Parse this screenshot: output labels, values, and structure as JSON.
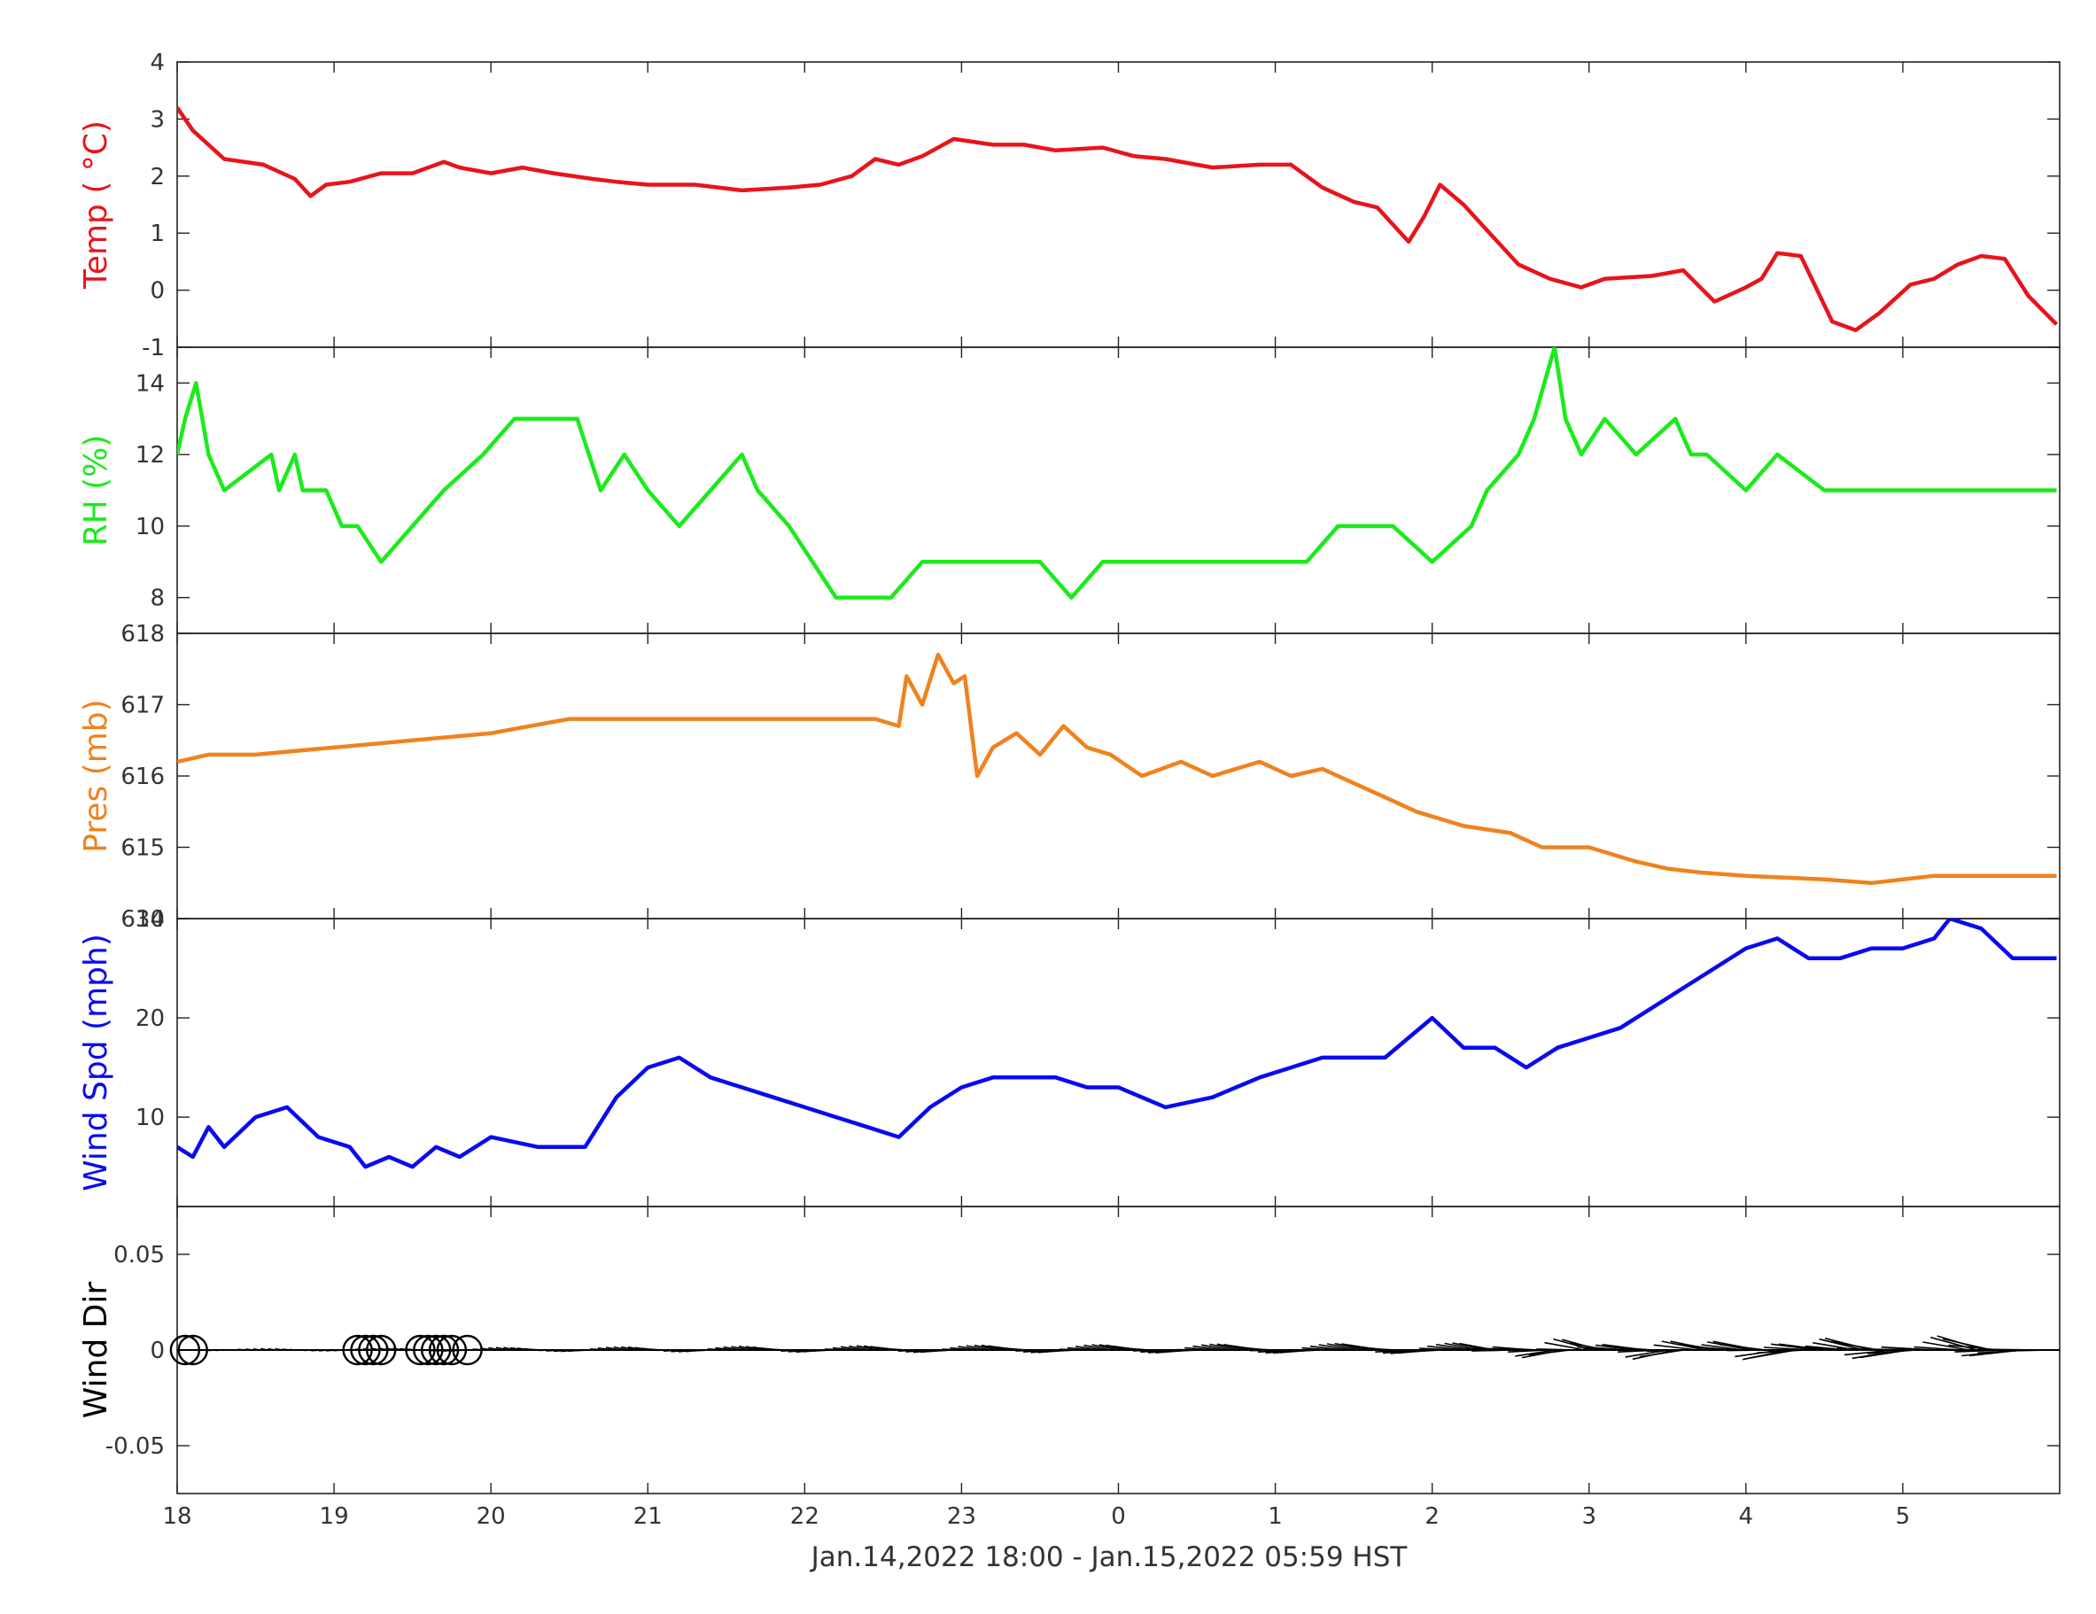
{
  "chart_data": [
    {
      "type": "line",
      "ylabel": "Temp ( °C)",
      "ylabel_color": "#e8141b",
      "series_color": "#e8141b",
      "ylim": [
        -1,
        4
      ],
      "yticks": [
        -1,
        0,
        1,
        2,
        3,
        4
      ],
      "ytick_labels": [
        "-1",
        "0",
        "1",
        "2",
        "3",
        "4"
      ],
      "series": [
        {
          "name": "",
          "x": [
            18.0,
            18.1,
            18.3,
            18.55,
            18.75,
            18.85,
            18.95,
            19.1,
            19.3,
            19.5,
            19.7,
            19.8,
            20.0,
            20.2,
            20.4,
            20.65,
            20.8,
            21.0,
            21.3,
            21.6,
            21.9,
            22.1,
            22.3,
            22.45,
            22.6,
            22.75,
            22.95,
            23.2,
            23.4,
            23.6,
            23.9,
            0.1,
            0.3,
            0.6,
            0.9,
            1.1,
            1.3,
            1.5,
            1.65,
            1.85,
            1.95,
            2.05,
            2.2,
            2.35,
            2.55,
            2.75,
            2.95,
            3.1,
            3.4,
            3.6,
            3.8,
            4.0,
            4.1,
            4.2,
            4.35,
            4.55,
            4.7,
            4.85,
            5.05,
            5.2,
            5.35,
            5.5,
            5.65,
            5.8,
            5.98
          ],
          "values": [
            3.2,
            2.8,
            2.3,
            2.2,
            1.95,
            1.65,
            1.85,
            1.9,
            2.05,
            2.05,
            2.25,
            2.15,
            2.05,
            2.15,
            2.05,
            1.95,
            1.9,
            1.85,
            1.85,
            1.75,
            1.8,
            1.85,
            2.0,
            2.3,
            2.2,
            2.35,
            2.65,
            2.55,
            2.55,
            2.45,
            2.5,
            2.35,
            2.3,
            2.15,
            2.2,
            2.2,
            1.8,
            1.55,
            1.45,
            0.85,
            1.3,
            1.85,
            1.5,
            1.05,
            0.45,
            0.2,
            0.05,
            0.2,
            0.25,
            0.35,
            -0.2,
            0.05,
            0.2,
            0.65,
            0.6,
            -0.55,
            -0.7,
            -0.4,
            0.1,
            0.2,
            0.45,
            0.6,
            0.55,
            -0.1,
            -0.6
          ]
        }
      ]
    },
    {
      "type": "line",
      "ylabel": "RH (%)",
      "ylabel_color": "#1aeb1a",
      "series_color": "#1aeb1a",
      "ylim": [
        7,
        15
      ],
      "yticks": [
        8,
        10,
        12,
        14
      ],
      "ytick_labels": [
        "8",
        "10",
        "12",
        "14"
      ],
      "series": [
        {
          "name": "",
          "x": [
            18.0,
            18.05,
            18.12,
            18.2,
            18.3,
            18.6,
            18.65,
            18.75,
            18.8,
            18.95,
            19.05,
            19.15,
            19.3,
            19.5,
            19.7,
            19.95,
            20.15,
            20.3,
            20.55,
            20.7,
            20.85,
            21.0,
            21.2,
            21.4,
            21.6,
            21.7,
            21.9,
            22.05,
            22.2,
            22.4,
            22.55,
            22.75,
            23.0,
            23.5,
            23.7,
            23.9,
            0.3,
            0.6,
            0.9,
            1.2,
            1.4,
            1.6,
            1.75,
            2.0,
            2.25,
            2.35,
            2.55,
            2.65,
            2.78,
            2.85,
            2.95,
            3.1,
            3.3,
            3.55,
            3.65,
            3.75,
            4.0,
            4.2,
            4.5,
            4.7,
            5.0,
            5.5,
            5.98
          ],
          "values": [
            12,
            13,
            14,
            12,
            11,
            12,
            11,
            12,
            11,
            11,
            10,
            10,
            9,
            10,
            11,
            12,
            13,
            13,
            13,
            11,
            12,
            11,
            10,
            11,
            12,
            11,
            10,
            9,
            8,
            8,
            8,
            9,
            9,
            9,
            8,
            9,
            9,
            9,
            9,
            9,
            10,
            10,
            10,
            9,
            10,
            11,
            12,
            13,
            15,
            13,
            12,
            13,
            12,
            13,
            12,
            12,
            11,
            12,
            11,
            11,
            11,
            11,
            11
          ]
        }
      ]
    },
    {
      "type": "line",
      "ylabel": "Pres (mb)",
      "ylabel_color": "#f0821e",
      "series_color": "#f0821e",
      "ylim": [
        614,
        618
      ],
      "yticks": [
        614,
        615,
        616,
        617,
        618
      ],
      "ytick_labels": [
        "614",
        "615",
        "616",
        "617",
        "618"
      ],
      "series": [
        {
          "name": "",
          "x": [
            18.0,
            18.2,
            18.5,
            19.0,
            19.5,
            20.0,
            20.5,
            21.0,
            21.5,
            22.0,
            22.45,
            22.6,
            22.65,
            22.75,
            22.85,
            22.95,
            23.02,
            23.1,
            23.2,
            23.35,
            23.5,
            23.65,
            23.8,
            23.95,
            0.15,
            0.4,
            0.6,
            0.9,
            1.1,
            1.3,
            1.5,
            1.7,
            1.9,
            2.2,
            2.5,
            2.7,
            3.0,
            3.3,
            3.5,
            3.7,
            4.0,
            4.5,
            4.8,
            5.2,
            5.6,
            5.98
          ],
          "values": [
            616.2,
            616.3,
            616.3,
            616.4,
            616.5,
            616.6,
            616.8,
            616.8,
            616.8,
            616.8,
            616.8,
            616.7,
            617.4,
            617.0,
            617.7,
            617.3,
            617.4,
            616.0,
            616.4,
            616.6,
            616.3,
            616.7,
            616.4,
            616.3,
            616.0,
            616.2,
            616.0,
            616.2,
            616.0,
            616.1,
            615.9,
            615.7,
            615.5,
            615.3,
            615.2,
            615.0,
            615.0,
            614.8,
            614.7,
            614.65,
            614.6,
            614.55,
            614.5,
            614.6,
            614.6,
            614.6
          ]
        }
      ]
    },
    {
      "type": "line",
      "ylabel": "Wind Spd (mph)",
      "ylabel_color": "#0a0af0",
      "series_color": "#0a0af0",
      "ylim": [
        1,
        30
      ],
      "yticks": [
        10,
        20,
        30
      ],
      "ytick_labels": [
        "10",
        "20",
        "30"
      ],
      "series": [
        {
          "name": "",
          "x": [
            18.0,
            18.1,
            18.2,
            18.3,
            18.5,
            18.7,
            18.9,
            19.1,
            19.2,
            19.35,
            19.5,
            19.65,
            19.8,
            20.0,
            20.3,
            20.6,
            20.8,
            21.0,
            21.2,
            21.4,
            21.6,
            21.8,
            22.0,
            22.2,
            22.4,
            22.6,
            22.8,
            23.0,
            23.2,
            23.4,
            23.6,
            23.8,
            0.0,
            0.3,
            0.6,
            0.9,
            1.1,
            1.3,
            1.5,
            1.7,
            1.85,
            2.0,
            2.2,
            2.4,
            2.6,
            2.8,
            3.0,
            3.2,
            3.4,
            3.6,
            3.8,
            4.0,
            4.2,
            4.4,
            4.6,
            4.8,
            5.0,
            5.2,
            5.3,
            5.5,
            5.7,
            5.98
          ],
          "values": [
            7,
            6,
            9,
            7,
            10,
            11,
            8,
            7,
            5,
            6,
            5,
            7,
            6,
            8,
            7,
            7,
            12,
            15,
            16,
            14,
            13,
            12,
            11,
            10,
            9,
            8,
            11,
            13,
            14,
            14,
            14,
            13,
            13,
            11,
            12,
            14,
            15,
            16,
            16,
            16,
            18,
            20,
            17,
            17,
            15,
            17,
            18,
            19,
            21,
            23,
            25,
            27,
            28,
            26,
            26,
            27,
            27,
            28,
            30,
            29,
            26,
            26
          ]
        }
      ]
    },
    {
      "type": "vector",
      "ylabel": "Wind Dir",
      "ylabel_color": "#000000",
      "series_color": "#000000",
      "ylim": [
        -0.075,
        0.075
      ],
      "yticks": [
        -0.05,
        0,
        0.05
      ],
      "ytick_labels": [
        "-0.05",
        "0",
        "0.05"
      ],
      "calm_markers_x": [
        18.05,
        18.1,
        19.15,
        19.2,
        19.25,
        19.3,
        19.55,
        19.6,
        19.65,
        19.7,
        19.75,
        19.85
      ]
    }
  ],
  "x_axis": {
    "ticks": [
      18,
      19,
      20,
      21,
      22,
      23,
      0,
      1,
      2,
      3,
      4,
      5
    ],
    "label": "Jan.14,2022 18:00 - Jan.15,2022 05:59 HST"
  }
}
